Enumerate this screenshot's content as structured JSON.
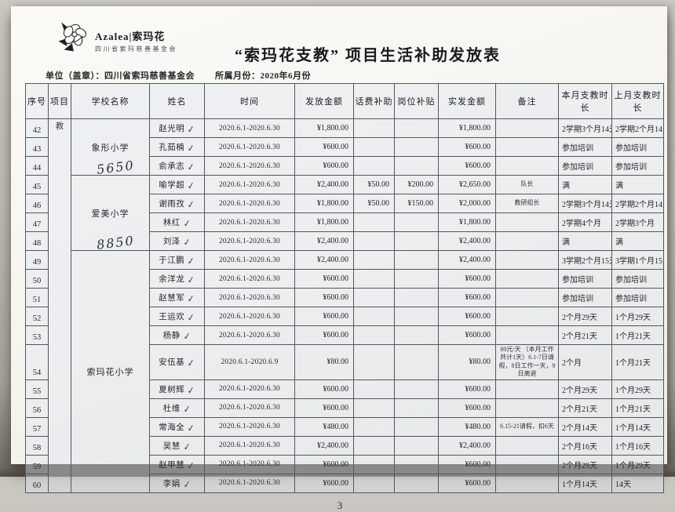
{
  "header": {
    "logo": {
      "brand": "Azalea|索玛花",
      "org": "四川省索玛慈善基金会"
    },
    "title": "“索玛花支教” 项目生活补助发放表",
    "unit_label": "单位（盖章）：四川省索玛慈善基金会",
    "month_label": "所属月份：2020年6月份"
  },
  "table": {
    "headers": [
      "序号",
      "项目",
      "学校名称",
      "姓名",
      "时间",
      "发放金额",
      "话费补助",
      "岗位补贴",
      "实发金额",
      "备注",
      "本月支教时长",
      "上月支教时长"
    ],
    "project_column_text": "教",
    "checkmark_glyph": "✓",
    "schools": [
      {
        "name": "象形小学",
        "handwritten": "5650",
        "rows": 3
      },
      {
        "name": "爱美小学",
        "handwritten": "8850",
        "rows": 4
      },
      {
        "name": "索玛花小学",
        "handwritten": "",
        "rows": 12
      }
    ],
    "rows": [
      {
        "no": "42",
        "name": "赵光明",
        "time": "2020.6.1-2020.6.30",
        "amount": "¥1,800.00",
        "phone": "",
        "post": "",
        "actual": "¥1,800.00",
        "note": "",
        "cur": "2学期3个月14天",
        "prev": "2学期2个月14天"
      },
      {
        "no": "43",
        "name": "孔茹楠",
        "time": "2020.6.1-2020.6.30",
        "amount": "¥600.00",
        "phone": "",
        "post": "",
        "actual": "¥600.00",
        "note": "",
        "cur": "参加培训",
        "prev": "参加培训"
      },
      {
        "no": "44",
        "name": "俞承志",
        "time": "2020.6.1-2020.6.30",
        "amount": "¥600.00",
        "phone": "",
        "post": "",
        "actual": "¥600.00",
        "note": "",
        "cur": "参加培训",
        "prev": "参加培训"
      },
      {
        "no": "45",
        "name": "喻学超",
        "time": "2020.6.1-2020.6.30",
        "amount": "¥2,400.00",
        "phone": "¥50.00",
        "post": "¥200.00",
        "actual": "¥2,650.00",
        "note": "队长",
        "cur": "满",
        "prev": "满"
      },
      {
        "no": "46",
        "name": "谢雨孜",
        "time": "2020.6.1-2020.6.30",
        "amount": "¥1,800.00",
        "phone": "¥50.00",
        "post": "¥150.00",
        "actual": "¥2,000.00",
        "note": "教研组长",
        "cur": "2学期3个月14天",
        "prev": "2学期2个月14天"
      },
      {
        "no": "47",
        "name": "林红",
        "time": "2020.6.1-2020.6.30",
        "amount": "¥1,800.00",
        "phone": "",
        "post": "",
        "actual": "¥1,800.00",
        "note": "",
        "cur": "2学期4个月",
        "prev": "2学期3个月"
      },
      {
        "no": "48",
        "name": "刘泽",
        "time": "2020.6.1-2020.6.30",
        "amount": "¥2,400.00",
        "phone": "",
        "post": "",
        "actual": "¥2,400.00",
        "note": "",
        "cur": "满",
        "prev": "满"
      },
      {
        "no": "49",
        "name": "于江鹏",
        "time": "2020.6.1-2020.6.30",
        "amount": "¥2,400.00",
        "phone": "",
        "post": "",
        "actual": "¥2,400.00",
        "note": "",
        "cur": "3学期2个月15天",
        "prev": "3学期1个月15天"
      },
      {
        "no": "50",
        "name": "余洋龙",
        "time": "2020.6.1-2020.6.30",
        "amount": "¥600.00",
        "phone": "",
        "post": "",
        "actual": "¥600.00",
        "note": "",
        "cur": "参加培训",
        "prev": "参加培训"
      },
      {
        "no": "51",
        "name": "赵慧军",
        "time": "2020.6.1-2020.6.30",
        "amount": "¥600.00",
        "phone": "",
        "post": "",
        "actual": "¥600.00",
        "note": "",
        "cur": "参加培训",
        "prev": "参加培训"
      },
      {
        "no": "52",
        "name": "王运欢",
        "time": "2020.6.1-2020.6.30",
        "amount": "¥600.00",
        "phone": "",
        "post": "",
        "actual": "¥600.00",
        "note": "",
        "cur": "2个月29天",
        "prev": "1个月29天"
      },
      {
        "no": "53",
        "name": "杨静",
        "time": "2020.6.1-2020.6.30",
        "amount": "¥600.00",
        "phone": "",
        "post": "",
        "actual": "¥600.00",
        "note": "",
        "cur": "2个月21天",
        "prev": "1个月21天"
      },
      {
        "no": "54",
        "name": "安伍基",
        "time": "2020.6.1-2020.6.9",
        "amount": "¥80.00",
        "phone": "",
        "post": "",
        "actual": "¥80.00",
        "note": "80元/天 （本月工作共计1天）6.1-7日请假，8日工作一天，9日离退",
        "cur": "2个月",
        "prev": "1个月21天"
      },
      {
        "no": "55",
        "name": "夏树辉",
        "time": "2020.6.1-2020.6.30",
        "amount": "¥600.00",
        "phone": "",
        "post": "",
        "actual": "¥600.00",
        "note": "",
        "cur": "2个月29天",
        "prev": "1个月29天"
      },
      {
        "no": "56",
        "name": "杜维",
        "time": "2020.6.1-2020.6.30",
        "amount": "¥600.00",
        "phone": "",
        "post": "",
        "actual": "¥600.00",
        "note": "",
        "cur": "2个月21天",
        "prev": "1个月21天"
      },
      {
        "no": "57",
        "name": "常海全",
        "time": "2020.6.1-2020.6.30",
        "amount": "¥480.00",
        "phone": "",
        "post": "",
        "actual": "¥480.00",
        "note": "6.15-21请假，扣6天",
        "cur": "2个月14天",
        "prev": "1个月14天"
      },
      {
        "no": "58",
        "name": "吴慧",
        "time": "2020.6.1-2020.6.30",
        "amount": "¥2,400.00",
        "phone": "",
        "post": "",
        "actual": "¥2,400.00",
        "note": "",
        "cur": "2个月16天",
        "prev": "1个月16天"
      },
      {
        "no": "59",
        "name": "赵甲慧",
        "time": "2020.6.1-2020.6.30",
        "amount": "¥600.00",
        "phone": "",
        "post": "",
        "actual": "¥600.00",
        "note": "",
        "cur": "2个月29天",
        "prev": "1个月29天"
      },
      {
        "no": "60",
        "name": "李娟",
        "time": "2020.6.1-2020.6.30",
        "amount": "¥600.00",
        "phone": "",
        "post": "",
        "actual": "¥600.00",
        "note": "",
        "cur": "1个月14天",
        "prev": "14天"
      }
    ]
  },
  "footer": {
    "page_number": "3"
  }
}
